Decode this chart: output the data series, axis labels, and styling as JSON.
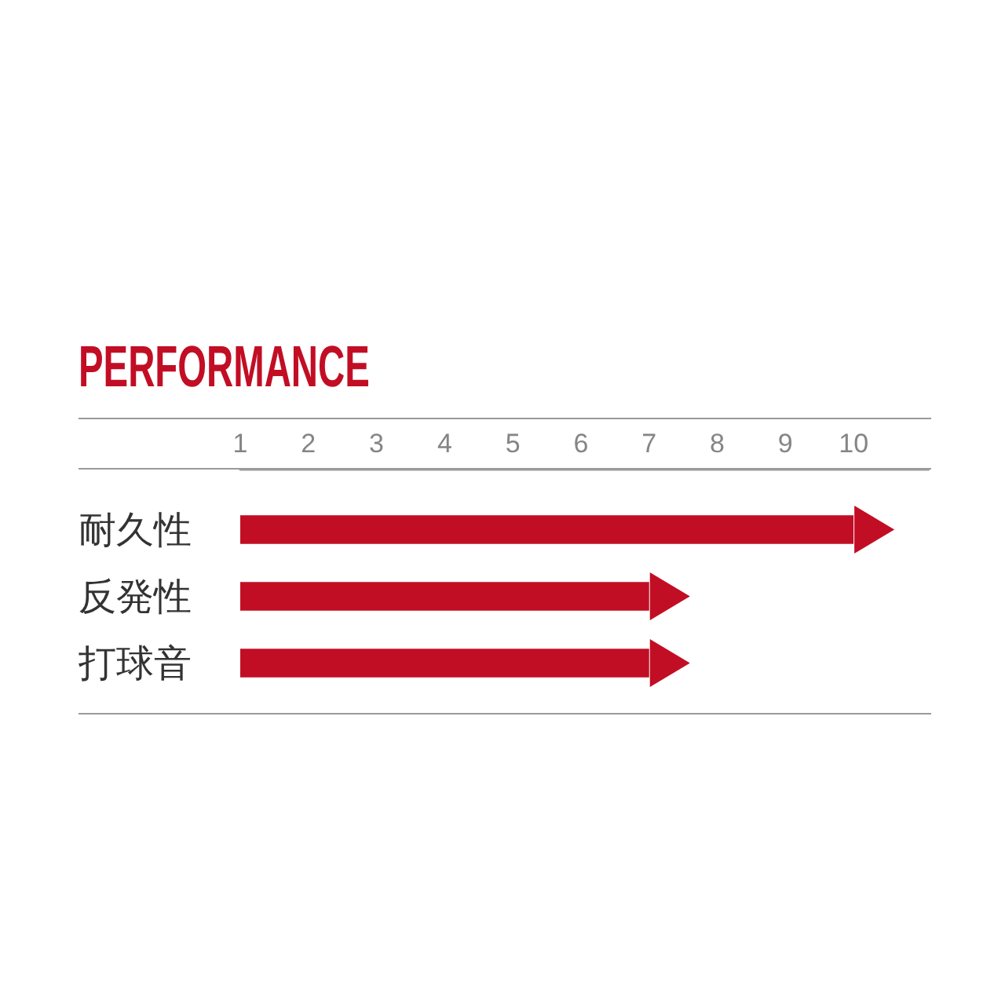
{
  "chart_data": {
    "type": "bar",
    "orientation": "horizontal",
    "title": "PERFORMANCE",
    "categories": [
      "耐久性",
      "反発性",
      "打球音"
    ],
    "values": [
      10,
      7,
      7
    ],
    "color": "#c20e24",
    "xlim": [
      1,
      11.1
    ],
    "xticks": [
      1,
      2,
      3,
      4,
      5,
      6,
      7,
      8,
      9,
      10
    ],
    "grid": false
  }
}
